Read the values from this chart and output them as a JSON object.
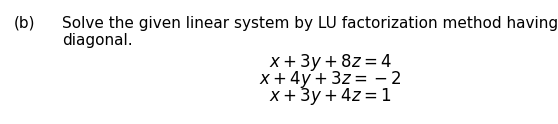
{
  "label": "(b)",
  "title_line1": "Solve the given linear system by LU factorization method having U as unit",
  "title_line2": "diagonal.",
  "eq1": "$x + 3y + 8z = 4$",
  "eq2": "$x + 4y + 3z = -2$",
  "eq3": "$x + 3y + 4z = 1$",
  "bg_color": "#ffffff",
  "text_color": "#000000",
  "font_size_label": 11,
  "font_size_title": 11,
  "font_size_eq": 12
}
